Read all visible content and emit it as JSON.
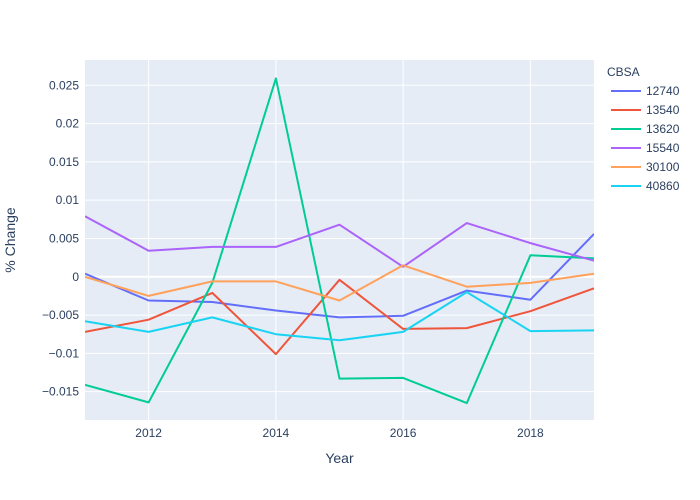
{
  "chart_data": {
    "type": "line",
    "xlabel": "Year",
    "ylabel": "% Change",
    "xlim": [
      2011,
      2019
    ],
    "ylim": [
      -0.0187,
      0.0283
    ],
    "x_ticks": [
      2012,
      2014,
      2016,
      2018
    ],
    "y_ticks": [
      {
        "value": 0.025,
        "label": "0.025"
      },
      {
        "value": 0.02,
        "label": "0.02"
      },
      {
        "value": 0.015,
        "label": "0.015"
      },
      {
        "value": 0.01,
        "label": "0.01"
      },
      {
        "value": 0.005,
        "label": "0.005"
      },
      {
        "value": 0,
        "label": "0"
      },
      {
        "value": -0.005,
        "label": "−0.005"
      },
      {
        "value": -0.01,
        "label": "−0.01"
      },
      {
        "value": -0.015,
        "label": "−0.015"
      }
    ],
    "grid": true,
    "legend_title": "CBSA",
    "legend_position": "top-right",
    "x": [
      2011,
      2012,
      2013,
      2014,
      2015,
      2016,
      2017,
      2018,
      2019
    ],
    "series": [
      {
        "name": "12740",
        "color": "#636efa",
        "values": [
          0.0004,
          -0.0031,
          -0.0033,
          -0.0044,
          -0.0053,
          -0.0051,
          -0.0018,
          -0.003,
          0.0056
        ]
      },
      {
        "name": "13540",
        "color": "#ef553b",
        "values": [
          -0.0072,
          -0.0056,
          -0.0021,
          -0.0101,
          -0.0004,
          -0.0068,
          -0.0067,
          -0.0045,
          -0.0015
        ]
      },
      {
        "name": "13620",
        "color": "#00cc96",
        "values": [
          -0.0141,
          -0.0164,
          -0.0008,
          0.0259,
          -0.0133,
          -0.0132,
          -0.0165,
          0.0028,
          0.0024
        ]
      },
      {
        "name": "15540",
        "color": "#ab63fa",
        "values": [
          0.0079,
          0.0034,
          0.0039,
          0.0039,
          0.0068,
          0.0013,
          0.007,
          0.0044,
          0.0021
        ]
      },
      {
        "name": "30100",
        "color": "#ffa15a",
        "values": [
          0.0,
          -0.0025,
          -0.0006,
          -0.0006,
          -0.0031,
          0.0015,
          -0.0013,
          -0.0008,
          0.0004
        ]
      },
      {
        "name": "40860",
        "color": "#19d3f3",
        "values": [
          -0.0058,
          -0.0072,
          -0.0053,
          -0.0075,
          -0.0083,
          -0.0072,
          -0.002,
          -0.0071,
          -0.007
        ]
      }
    ]
  }
}
